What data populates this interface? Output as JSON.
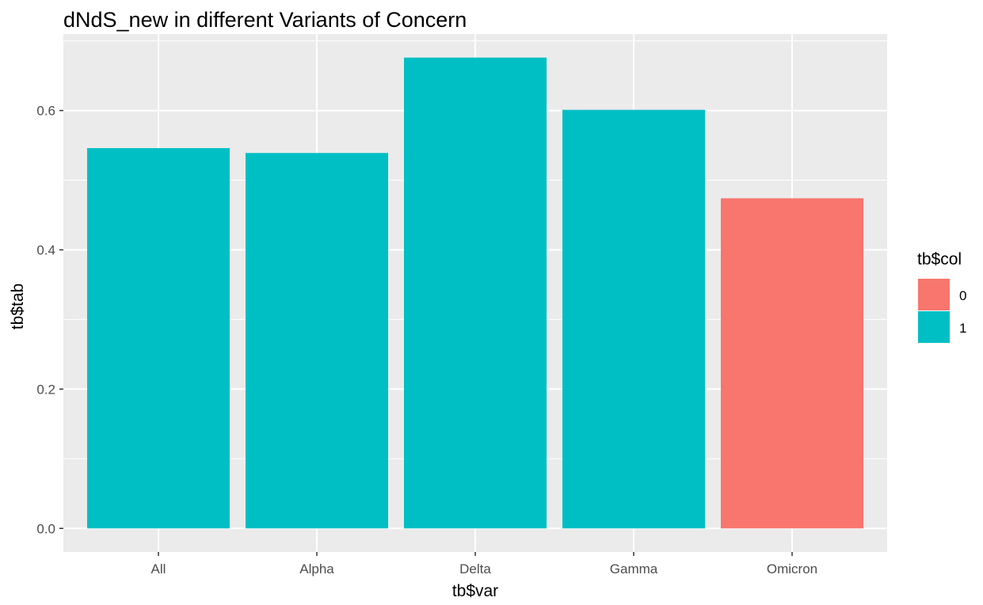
{
  "chart_data": {
    "type": "bar",
    "title": "dNdS_new in different Variants of Concern",
    "xlabel": "tb$var",
    "ylabel": "tb$tab",
    "categories": [
      "All",
      "Alpha",
      "Delta",
      "Gamma",
      "Omicron"
    ],
    "values": [
      0.546,
      0.539,
      0.676,
      0.601,
      0.474
    ],
    "fill_group": [
      "1",
      "1",
      "1",
      "1",
      "0"
    ],
    "ylim": [
      -0.0338,
      0.7098
    ],
    "yticks": [
      0.0,
      0.2,
      0.4,
      0.6
    ],
    "ytick_labels": [
      "0.0",
      "0.2",
      "0.4",
      "0.6"
    ],
    "grid": true,
    "legend": {
      "title": "tb$col",
      "placement": "right",
      "entries": [
        {
          "label": "0",
          "color": "#F8766D"
        },
        {
          "label": "1",
          "color": "#00BFC4"
        }
      ]
    },
    "colors": {
      "panel_background": "#EBEBEB",
      "grid": "#FFFFFF",
      "group_0": "#F8766D",
      "group_1": "#00BFC4"
    }
  }
}
